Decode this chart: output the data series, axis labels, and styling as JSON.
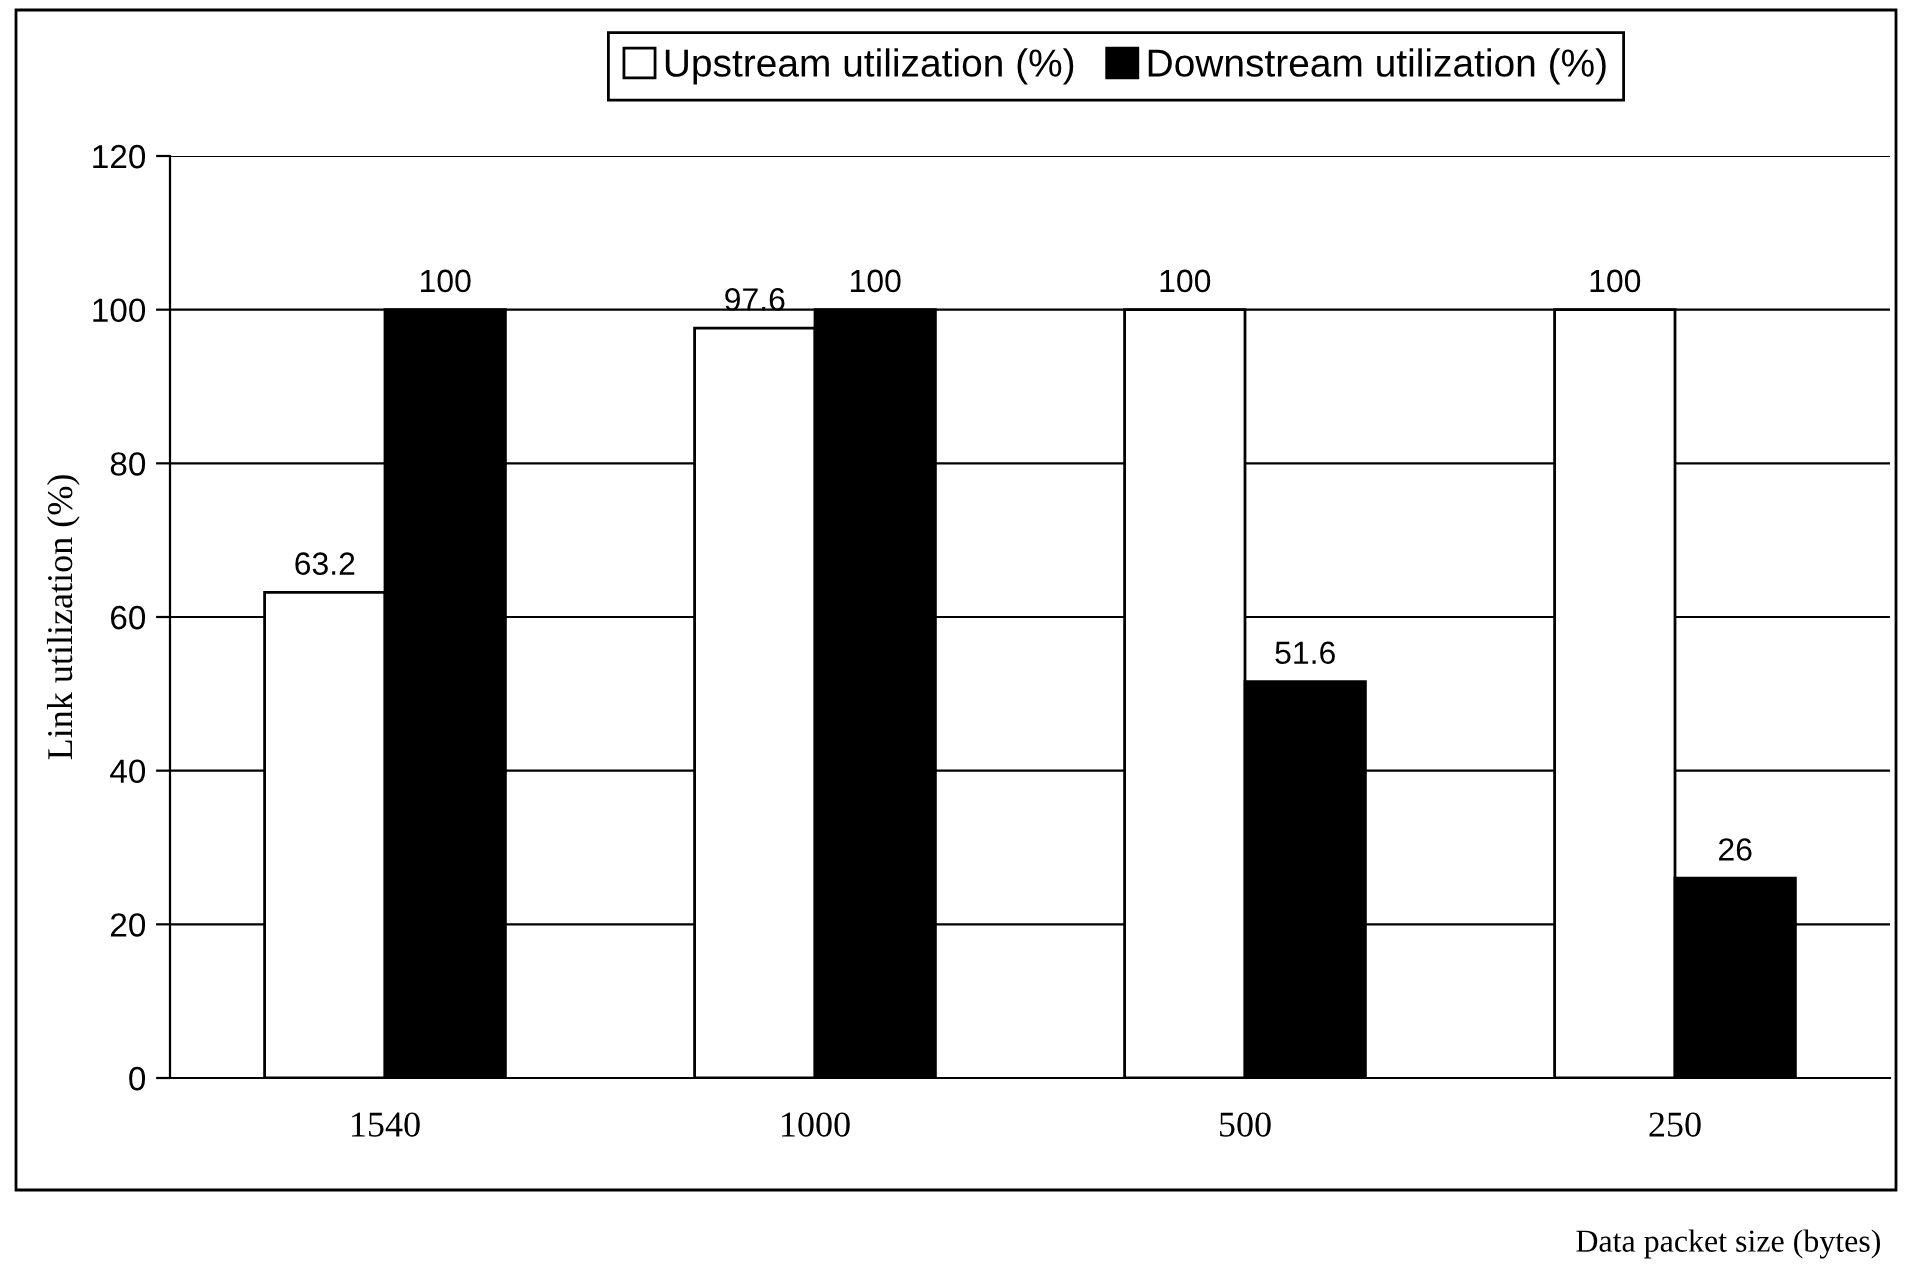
{
  "chart_data": {
    "type": "bar",
    "xlabel": "Data packet size (bytes)",
    "ylabel": "Link utilization (%)",
    "categories": [
      "1540",
      "1000",
      "500",
      "250"
    ],
    "series": [
      {
        "name": "Upstream utilization (%)",
        "color": "#ffffff",
        "values": [
          63.2,
          97.6,
          100,
          100
        ]
      },
      {
        "name": "Downstream utilization (%)",
        "color": "#000000",
        "values": [
          100,
          100,
          51.6,
          26
        ]
      }
    ],
    "ylim": [
      0,
      120
    ],
    "yticks": [
      0,
      20,
      40,
      60,
      80,
      100,
      120
    ],
    "grid": "y",
    "legend": "top",
    "data_labels": true
  }
}
